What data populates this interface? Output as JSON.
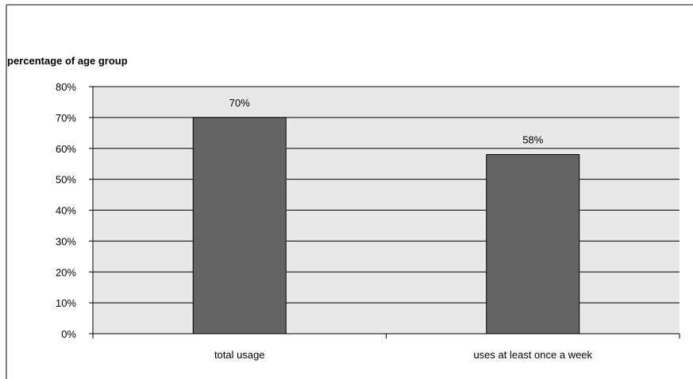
{
  "chart_data": {
    "type": "bar",
    "title": "",
    "ylabel": "percentage of age group",
    "xlabel": "",
    "categories": [
      "total usage",
      "uses at least once a week"
    ],
    "values": [
      70,
      58
    ],
    "data_labels": [
      "70%",
      "58%"
    ],
    "ylim": [
      0,
      80
    ],
    "yticks": [
      0,
      10,
      20,
      30,
      40,
      50,
      60,
      70,
      80
    ],
    "ytick_labels": [
      "0%",
      "10%",
      "20%",
      "30%",
      "40%",
      "50%",
      "60%",
      "70%",
      "80%"
    ],
    "grid": true,
    "legend": "none",
    "colors": {
      "bar": "#646464",
      "bar_border": "#000000",
      "plot_background": "#e8e8e8",
      "gridline": "#000000"
    }
  }
}
